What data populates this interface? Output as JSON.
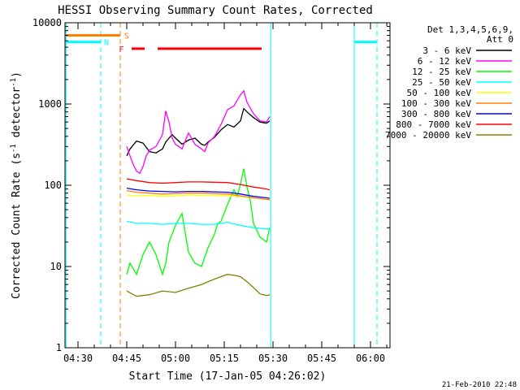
{
  "chart_data": {
    "type": "line",
    "title": "HESSI Observing Summary Count Rates, Corrected",
    "xlabel": "Start Time (17-Jan-05 04:26:02)",
    "ylabel_main": "Corrected Count Rate (s",
    "ylabel_sup1": "-1",
    "ylabel_mid": " detector",
    "ylabel_sup2": "-1",
    "ylabel_end": ")",
    "footer": "21-Feb-2010 22:48",
    "x_unit": "minutes after 04:26:02 UT",
    "xlim": [
      0,
      100
    ],
    "ylim": [
      1,
      10000
    ],
    "y_scale": "log",
    "x_ticks": [
      {
        "label": "04:30",
        "value": 4
      },
      {
        "label": "04:45",
        "value": 19
      },
      {
        "label": "05:00",
        "value": 34
      },
      {
        "label": "05:15",
        "value": 49
      },
      {
        "label": "05:30",
        "value": 64
      },
      {
        "label": "05:45",
        "value": 79
      },
      {
        "label": "06:00",
        "value": 94
      }
    ],
    "y_ticks": [
      {
        "label": "1",
        "value": 1
      },
      {
        "label": "10",
        "value": 10
      },
      {
        "label": "100",
        "value": 100
      },
      {
        "label": "1000",
        "value": 1000
      },
      {
        "label": "10000",
        "value": 10000
      }
    ],
    "legend": {
      "header_1": "Det 1,3,4,5,6,9,",
      "header_2": "Att 0",
      "placement": "right"
    },
    "flags": {
      "S_label": "S",
      "N_label": "N",
      "F_label": "F",
      "saa_color": "#ff8000",
      "night_color": "#00ffff",
      "flare_color": "#ff0000"
    },
    "series": [
      {
        "name": "3 - 6 keV",
        "color": "#000000",
        "x": [
          19,
          20,
          22,
          24,
          26,
          28,
          30,
          31,
          32,
          33,
          34,
          36,
          38,
          40,
          42,
          43,
          44,
          46,
          48,
          50,
          52,
          54,
          55,
          56,
          58,
          60,
          62,
          63
        ],
        "y": [
          230,
          280,
          350,
          330,
          260,
          250,
          280,
          340,
          380,
          420,
          380,
          320,
          360,
          380,
          320,
          310,
          340,
          390,
          480,
          560,
          520,
          620,
          880,
          800,
          680,
          600,
          580,
          620
        ]
      },
      {
        "name": "6 - 12 keV",
        "color": "#ff00ff",
        "x": [
          19,
          20,
          21,
          22,
          23,
          24,
          25,
          26,
          28,
          30,
          31,
          32,
          33,
          34,
          35,
          36,
          38,
          40,
          42,
          43,
          44,
          46,
          48,
          50,
          52,
          54,
          55,
          56,
          58,
          60,
          62,
          63
        ],
        "y": [
          300,
          230,
          180,
          150,
          140,
          170,
          230,
          270,
          300,
          420,
          820,
          600,
          380,
          320,
          300,
          280,
          440,
          320,
          280,
          260,
          330,
          400,
          560,
          850,
          950,
          1300,
          1450,
          1050,
          760,
          620,
          600,
          700
        ]
      },
      {
        "name": "12 - 25 keV",
        "color": "#00ff00",
        "x": [
          19,
          20,
          22,
          24,
          26,
          28,
          30,
          31,
          32,
          34,
          36,
          38,
          40,
          42,
          44,
          46,
          47,
          48,
          50,
          52,
          53,
          54,
          55,
          56,
          57,
          58,
          60,
          62,
          63
        ],
        "y": [
          8,
          11,
          8,
          14,
          20,
          14,
          8,
          11,
          20,
          32,
          45,
          15,
          11,
          10,
          17,
          25,
          34,
          36,
          58,
          88,
          72,
          105,
          160,
          95,
          65,
          34,
          23,
          20,
          30
        ]
      },
      {
        "name": "25 - 50 keV",
        "color": "#00ffff",
        "x": [
          19,
          22,
          26,
          30,
          34,
          38,
          42,
          46,
          50,
          54,
          58,
          62,
          63
        ],
        "y": [
          36,
          34,
          34,
          33,
          34,
          34,
          33,
          33,
          35,
          32,
          30,
          29,
          29
        ]
      },
      {
        "name": "50 - 100 keV",
        "color": "#ffff00",
        "x": [
          19,
          22,
          26,
          30,
          34,
          38,
          42,
          46,
          50,
          54,
          58,
          62,
          63
        ],
        "y": [
          76,
          74,
          75,
          73,
          74,
          76,
          75,
          75,
          74,
          73,
          70,
          67,
          66
        ]
      },
      {
        "name": "100 - 300 keV",
        "color": "#ff8000",
        "x": [
          19,
          22,
          26,
          30,
          34,
          38,
          42,
          46,
          50,
          54,
          58,
          62,
          63
        ],
        "y": [
          86,
          82,
          80,
          78,
          79,
          80,
          80,
          79,
          78,
          74,
          70,
          67,
          66
        ]
      },
      {
        "name": "300 - 800 keV",
        "color": "#0000ff",
        "x": [
          19,
          22,
          26,
          30,
          34,
          38,
          42,
          46,
          50,
          54,
          58,
          62,
          63
        ],
        "y": [
          92,
          88,
          85,
          84,
          83,
          84,
          84,
          83,
          82,
          78,
          73,
          70,
          69
        ]
      },
      {
        "name": "800 - 7000 keV",
        "color": "#ff0000",
        "x": [
          19,
          22,
          26,
          30,
          34,
          38,
          42,
          46,
          50,
          54,
          58,
          62,
          63
        ],
        "y": [
          120,
          114,
          108,
          106,
          108,
          110,
          110,
          109,
          108,
          102,
          95,
          90,
          88
        ]
      },
      {
        "name": "7000 - 20000 keV",
        "color": "#808000",
        "x": [
          19,
          22,
          26,
          30,
          34,
          38,
          42,
          44,
          46,
          48,
          50,
          52,
          54,
          56,
          58,
          60,
          62,
          63
        ],
        "y": [
          5,
          4.3,
          4.5,
          5,
          4.8,
          5.4,
          6,
          6.5,
          7,
          7.5,
          8,
          7.8,
          7.5,
          6.5,
          5.5,
          4.6,
          4.4,
          4.5
        ]
      }
    ]
  }
}
